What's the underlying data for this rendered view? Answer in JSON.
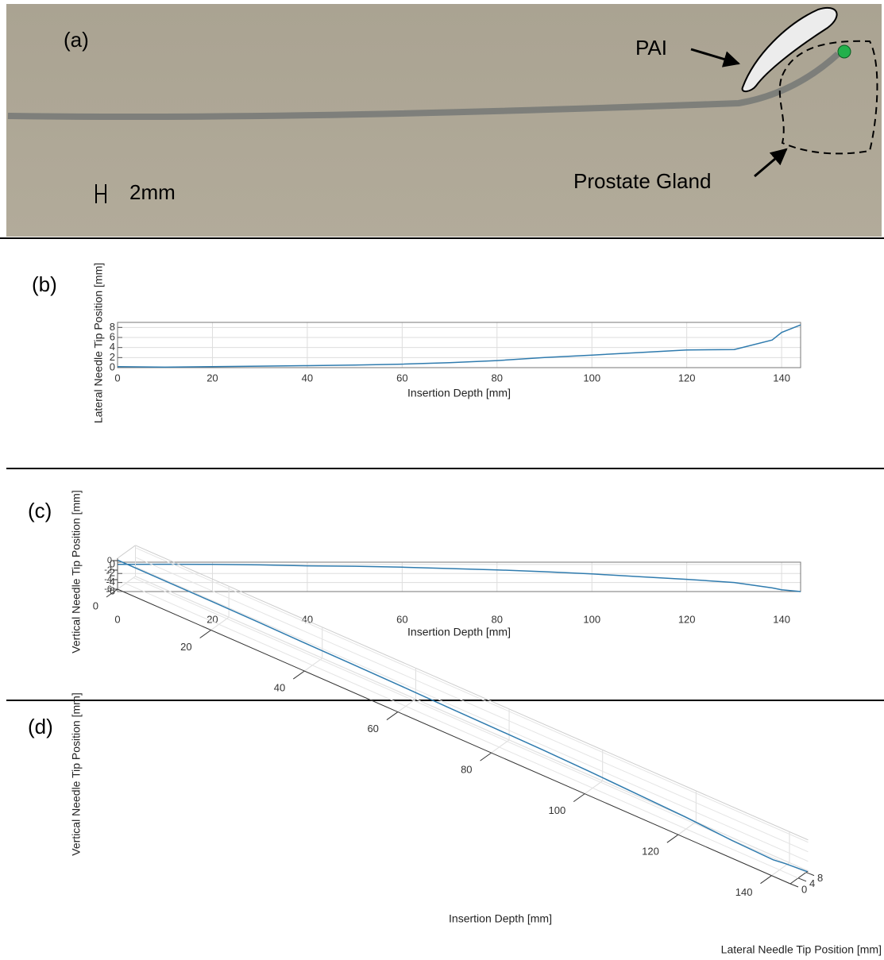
{
  "panel_a": {
    "label": "(a)",
    "pointer_labels": [
      "PAI",
      "Prostate Gland"
    ],
    "scale_bar_label": "2mm"
  },
  "chart_data": [
    {
      "type": "line",
      "panel_label": "(b)",
      "x_label": "Insertion Depth [mm]",
      "y_label": "Lateral Needle Tip Position [mm]",
      "x": [
        0,
        10,
        20,
        30,
        40,
        50,
        60,
        70,
        80,
        90,
        100,
        110,
        120,
        130,
        138,
        140,
        144
      ],
      "series": [
        {
          "color": "#2f7bae",
          "values": [
            0.2,
            0.1,
            0.2,
            0.3,
            0.4,
            0.5,
            0.7,
            1.0,
            1.4,
            2.0,
            2.5,
            3.0,
            3.5,
            3.6,
            5.5,
            7.0,
            8.5
          ]
        }
      ],
      "xlim": [
        0,
        144
      ],
      "xticks": [
        0,
        20,
        40,
        60,
        80,
        100,
        120,
        140
      ],
      "ylim": [
        0,
        9
      ],
      "yticks": [
        0,
        2,
        4,
        6,
        8
      ],
      "grid": true
    },
    {
      "type": "line",
      "panel_label": "(c)",
      "x_label": "Insertion Depth [mm]",
      "y_label": "Vertical Needle Tip Position [mm]",
      "x": [
        0,
        10,
        20,
        30,
        40,
        50,
        60,
        70,
        80,
        90,
        100,
        110,
        120,
        130,
        138,
        140,
        144
      ],
      "series": [
        {
          "color": "#2f7bae",
          "values": [
            0,
            0.05,
            0,
            -0.1,
            -0.3,
            -0.4,
            -0.6,
            -0.9,
            -1.2,
            -1.6,
            -2.1,
            -2.7,
            -3.3,
            -4.0,
            -5.2,
            -5.6,
            -6.0
          ]
        }
      ],
      "xlim": [
        0,
        144
      ],
      "xticks": [
        0,
        20,
        40,
        60,
        80,
        100,
        120,
        140
      ],
      "ylim": [
        -6,
        0.5
      ],
      "yticks": [
        0,
        -2,
        -4,
        -6
      ],
      "grid": true
    },
    {
      "type": "line3d",
      "panel_label": "(d)",
      "x_label": "Insertion Depth [mm]",
      "y_label": "Lateral Needle Tip Position [mm]",
      "z_label": "Vertical Needle Tip Position [mm]",
      "x": [
        0,
        10,
        20,
        30,
        40,
        50,
        60,
        70,
        80,
        90,
        100,
        110,
        120,
        130,
        138,
        140,
        144
      ],
      "y": [
        0.2,
        0.1,
        0.2,
        0.3,
        0.4,
        0.5,
        0.7,
        1.0,
        1.4,
        2.0,
        2.5,
        3.0,
        3.5,
        3.6,
        5.5,
        7.0,
        8.5
      ],
      "z": [
        0,
        0.05,
        0,
        -0.1,
        -0.3,
        -0.4,
        -0.6,
        -0.9,
        -1.2,
        -1.6,
        -2.1,
        -2.7,
        -3.3,
        -4.0,
        -5.2,
        -5.6,
        -6.0
      ],
      "color": "#2f7bae",
      "xlim": [
        0,
        144
      ],
      "xticks": [
        0,
        20,
        40,
        60,
        80,
        100,
        120,
        140
      ],
      "ylim": [
        0,
        9
      ],
      "yticks": [
        0,
        4,
        8
      ],
      "zlim": [
        -6,
        0.5
      ],
      "zticks": [
        0,
        -2,
        -4,
        -6
      ],
      "grid": true
    }
  ]
}
